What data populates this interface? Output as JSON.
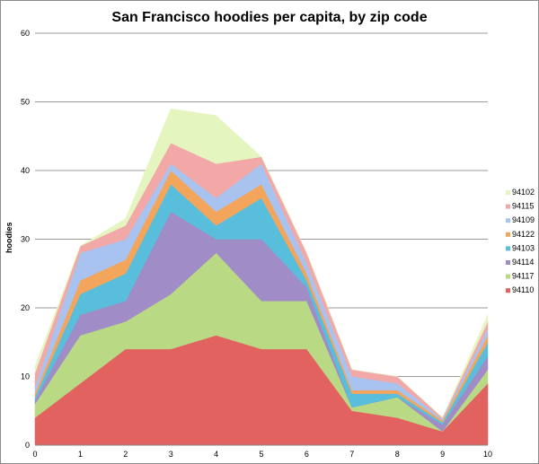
{
  "chart_data": {
    "type": "area",
    "stacked": true,
    "title": "San Francisco hoodies per capita, by zip code",
    "ylabel": "hoodies",
    "xlabel": "",
    "x": [
      0,
      1,
      2,
      3,
      4,
      5,
      6,
      7,
      8,
      9,
      10
    ],
    "ylim": [
      0,
      60
    ],
    "yticks": [
      0,
      10,
      20,
      30,
      40,
      50,
      60
    ],
    "grid": true,
    "legend_position": "right",
    "series": [
      {
        "name": "94110",
        "color": "#e2625f",
        "values": [
          4,
          9,
          14,
          14,
          16,
          14,
          14,
          5,
          4,
          2,
          9
        ]
      },
      {
        "name": "94117",
        "color": "#b9d985",
        "values": [
          2,
          7,
          4,
          8,
          12,
          7,
          7,
          0.5,
          3,
          0,
          2
        ]
      },
      {
        "name": "94114",
        "color": "#a08cc6",
        "values": [
          0.5,
          3,
          3,
          12,
          2,
          9,
          2,
          0,
          0,
          1,
          2
        ]
      },
      {
        "name": "94103",
        "color": "#58bedb",
        "values": [
          0.5,
          3,
          4,
          4,
          2,
          6,
          1,
          2,
          0.5,
          0.3,
          2
        ]
      },
      {
        "name": "94122",
        "color": "#f4a55c",
        "values": [
          0.5,
          2,
          2,
          2,
          2,
          2,
          1,
          0.5,
          0.5,
          0.3,
          1
        ]
      },
      {
        "name": "94109",
        "color": "#a9c3f0",
        "values": [
          1,
          4,
          3,
          1,
          2,
          3,
          1.5,
          2,
          1,
          0.2,
          1
        ]
      },
      {
        "name": "94115",
        "color": "#f3a8a8",
        "values": [
          2,
          1,
          2,
          3,
          5,
          1,
          1.5,
          1,
          1,
          0.2,
          1
        ]
      },
      {
        "name": "94102",
        "color": "#e4f5bf",
        "values": [
          1,
          0,
          1,
          5,
          7,
          0,
          0,
          0,
          0,
          0,
          1
        ]
      }
    ]
  }
}
